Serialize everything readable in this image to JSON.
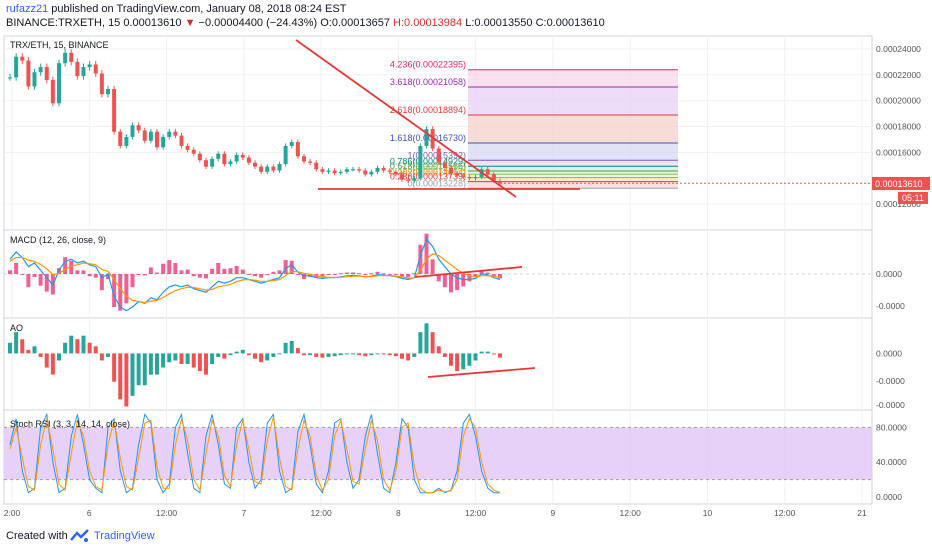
{
  "header": {
    "author": "rufazz21",
    "published": "published on TradingView.com, January 08, 2018 08:24 EST",
    "symbol": "BINANCE:TRXETH, 15",
    "last": "0.00013610",
    "change": "−0.00004400 (−24.43%)",
    "ohlc_o": "O:0.00013657",
    "ohlc_h": "H:0.00013984",
    "ohlc_l": "L:0.00013550",
    "ohlc_c": "C:0.00013610"
  },
  "footer": {
    "created": "Created with",
    "brand": "TradingView"
  },
  "colors": {
    "up": "#26a69a",
    "down": "#ef5350",
    "trend": "#e53935",
    "macd": "#2196f3",
    "signal": "#ff9800",
    "hist": "#e91e63",
    "stoch_k": "#2196f3",
    "stoch_d": "#ff9800",
    "stoch_band": "#e1c6f7"
  },
  "chart_data": [
    {
      "type": "line",
      "pane": "price",
      "title": "TRX/ETH, 15, BINANCE",
      "x_ticks": [
        "2:00",
        "6",
        "12:00",
        "7",
        "12:00",
        "8",
        "12:00",
        "9",
        "12:00",
        "10",
        "12:00",
        "21"
      ],
      "y_ticks": [
        "0.00024000",
        "0.00022000",
        "0.00020000",
        "0.00018000",
        "0.00016000",
        "0.00012000"
      ],
      "y_range": [
        0.0001,
        0.00025
      ],
      "last_price_label": "0.00013610",
      "countdown": "05:11",
      "close_series": [
        0.000218,
        0.000234,
        0.000231,
        0.000211,
        0.000222,
        0.000226,
        0.000216,
        0.000198,
        0.000229,
        0.000237,
        0.00023,
        0.000219,
        0.000226,
        0.000228,
        0.000221,
        0.000205,
        0.000209,
        0.000176,
        0.000165,
        0.000172,
        0.000181,
        0.000177,
        0.000169,
        0.000176,
        0.000164,
        0.000172,
        0.000176,
        0.000173,
        0.000165,
        0.000162,
        0.000159,
        0.000154,
        0.000149,
        0.000155,
        0.000159,
        0.000151,
        0.000153,
        0.000158,
        0.000156,
        0.000152,
        0.000149,
        0.000145,
        0.000149,
        0.000146,
        0.000151,
        0.000165,
        0.000168,
        0.000157,
        0.000153,
        0.000152,
        0.000147,
        0.000145,
        0.000146,
        0.000144,
        0.000145,
        0.000147,
        0.000147,
        0.000146,
        0.000143,
        0.000145,
        0.000148,
        0.000146,
        0.000145,
        0.000143,
        0.000139,
        0.000138,
        0.00014,
        0.000165,
        0.000178,
        0.000163,
        0.000152,
        0.000148,
        0.000144,
        0.000142,
        0.000141,
        0.00014,
        0.000141,
        0.000147,
        0.000143,
        0.000138,
        0.0001361
      ],
      "fib_levels": [
        {
          "label": "4.236(0.00022395)",
          "value": 0.00022395,
          "color": "#e91e63"
        },
        {
          "label": "3.618(0.00021058)",
          "value": 0.00021058,
          "color": "#9c27b0"
        },
        {
          "label": "2.618(0.00018894)",
          "value": 0.00018894,
          "color": "#e53935"
        },
        {
          "label": "1.618(0.00016730)",
          "value": 0.0001673,
          "color": "#3f51b5"
        },
        {
          "label": "1(0.00015392)",
          "value": 0.00015392,
          "color": "#7e57c2"
        },
        {
          "label": "0.786(0.00014929)",
          "value": 0.00014929,
          "color": "#00897b"
        },
        {
          "label": "0.618(0.00014566)",
          "value": 0.00014566,
          "color": "#43a047"
        },
        {
          "label": "0.5(0.00014310)",
          "value": 0.0001431,
          "color": "#8bc34a"
        },
        {
          "label": "0.382(0.00014054)",
          "value": 0.00014054,
          "color": "#fb8c00"
        },
        {
          "label": "0.236(0.00013739)",
          "value": 0.00013739,
          "color": "#e53935"
        },
        {
          "label": "0(0.00013228)",
          "value": 0.00013228,
          "color": "#9e9e9e"
        }
      ]
    },
    {
      "type": "bar",
      "pane": "macd",
      "title": "MACD (12, 26, close, 9)",
      "y_ticks": [
        "0.0000",
        "-0.0000"
      ],
      "y_range": [
        -1.2,
        1.2
      ],
      "macd": [
        0.4,
        0.6,
        0.45,
        0.2,
        0.3,
        0.1,
        -0.1,
        -0.3,
        0.1,
        0.35,
        0.4,
        0.3,
        0.35,
        0.25,
        0.2,
        -0.1,
        0.0,
        -0.6,
        -0.9,
        -1.0,
        -0.9,
        -0.75,
        -0.8,
        -0.65,
        -0.7,
        -0.5,
        -0.35,
        -0.3,
        -0.35,
        -0.3,
        -0.4,
        -0.45,
        -0.5,
        -0.35,
        -0.2,
        -0.25,
        -0.2,
        -0.1,
        -0.1,
        -0.15,
        -0.2,
        -0.25,
        -0.2,
        -0.15,
        -0.1,
        0.15,
        0.25,
        0.05,
        -0.05,
        -0.05,
        -0.1,
        -0.12,
        -0.1,
        -0.1,
        -0.08,
        -0.05,
        -0.04,
        -0.05,
        -0.08,
        -0.06,
        -0.02,
        -0.03,
        -0.05,
        -0.07,
        -0.12,
        -0.15,
        -0.1,
        0.5,
        0.95,
        0.75,
        0.4,
        0.2,
        0.0,
        -0.1,
        -0.15,
        -0.15,
        -0.12,
        0.0,
        -0.02,
        -0.1,
        -0.15
      ],
      "signal": [
        0.35,
        0.45,
        0.45,
        0.38,
        0.34,
        0.26,
        0.14,
        -0.02,
        0.02,
        0.12,
        0.22,
        0.25,
        0.3,
        0.28,
        0.25,
        0.12,
        0.07,
        -0.15,
        -0.4,
        -0.6,
        -0.72,
        -0.75,
        -0.78,
        -0.74,
        -0.72,
        -0.64,
        -0.54,
        -0.45,
        -0.4,
        -0.36,
        -0.37,
        -0.4,
        -0.44,
        -0.42,
        -0.35,
        -0.32,
        -0.28,
        -0.21,
        -0.16,
        -0.15,
        -0.17,
        -0.2,
        -0.2,
        -0.18,
        -0.15,
        -0.04,
        0.07,
        0.06,
        0.02,
        -0.01,
        -0.05,
        -0.08,
        -0.09,
        -0.09,
        -0.09,
        -0.07,
        -0.06,
        -0.06,
        -0.07,
        -0.07,
        -0.05,
        -0.04,
        -0.04,
        -0.06,
        -0.08,
        -0.11,
        -0.11,
        0.1,
        0.4,
        0.55,
        0.5,
        0.38,
        0.25,
        0.12,
        0.02,
        -0.05,
        -0.08,
        -0.05,
        -0.04,
        -0.06,
        -0.09
      ]
    },
    {
      "type": "bar",
      "pane": "ao",
      "title": "AO",
      "y_ticks": [
        "0.0000",
        "-0.0000",
        "-0.0000"
      ],
      "y_range": [
        -1.6,
        1.0
      ],
      "values": [
        0.3,
        0.6,
        0.4,
        0.1,
        0.2,
        -0.1,
        -0.4,
        -0.6,
        -0.2,
        0.3,
        0.5,
        0.4,
        0.5,
        0.3,
        0.2,
        -0.2,
        -0.1,
        -0.8,
        -1.3,
        -1.5,
        -1.2,
        -0.9,
        -0.9,
        -0.6,
        -0.6,
        -0.4,
        -0.25,
        -0.2,
        -0.3,
        -0.3,
        -0.4,
        -0.5,
        -0.6,
        -0.3,
        -0.1,
        -0.15,
        -0.05,
        0.05,
        0.1,
        -0.05,
        -0.15,
        -0.25,
        -0.2,
        -0.1,
        0.0,
        0.3,
        0.35,
        0.15,
        -0.05,
        -0.05,
        -0.1,
        -0.12,
        -0.1,
        -0.08,
        -0.05,
        -0.03,
        -0.02,
        -0.05,
        -0.08,
        -0.05,
        0.0,
        -0.02,
        -0.05,
        -0.08,
        -0.15,
        -0.2,
        -0.1,
        0.6,
        0.85,
        0.6,
        0.2,
        -0.1,
        -0.35,
        -0.5,
        -0.45,
        -0.35,
        -0.2,
        0.05,
        0.05,
        0.0,
        -0.12
      ]
    },
    {
      "type": "line",
      "pane": "stoch_rsi",
      "title": "Stoch RSI (3, 3, 14, 14, close)",
      "y_ticks": [
        "80.0000",
        "40.0000",
        "0.0000"
      ],
      "y_range": [
        -8,
        100
      ],
      "band": [
        20,
        80
      ],
      "k": [
        60,
        90,
        30,
        5,
        10,
        80,
        95,
        40,
        5,
        10,
        70,
        95,
        60,
        20,
        10,
        5,
        80,
        90,
        30,
        5,
        10,
        60,
        95,
        85,
        20,
        5,
        15,
        80,
        95,
        50,
        10,
        5,
        70,
        95,
        60,
        15,
        10,
        80,
        90,
        40,
        10,
        20,
        85,
        95,
        30,
        5,
        10,
        75,
        95,
        60,
        15,
        5,
        30,
        85,
        90,
        40,
        10,
        20,
        70,
        95,
        50,
        10,
        5,
        40,
        90,
        80,
        20,
        5,
        5,
        5,
        10,
        5,
        8,
        30,
        85,
        95,
        70,
        30,
        10,
        5,
        5
      ],
      "d": [
        55,
        80,
        45,
        12,
        8,
        60,
        90,
        55,
        15,
        8,
        50,
        88,
        70,
        30,
        12,
        8,
        60,
        88,
        45,
        12,
        8,
        45,
        85,
        88,
        35,
        10,
        10,
        60,
        90,
        65,
        20,
        8,
        50,
        88,
        70,
        25,
        12,
        60,
        88,
        55,
        18,
        15,
        65,
        92,
        45,
        12,
        8,
        55,
        88,
        70,
        25,
        8,
        20,
        70,
        88,
        55,
        18,
        15,
        55,
        88,
        65,
        20,
        8,
        30,
        80,
        85,
        35,
        10,
        5,
        5,
        8,
        6,
        7,
        20,
        70,
        90,
        80,
        40,
        15,
        8,
        5
      ]
    }
  ]
}
